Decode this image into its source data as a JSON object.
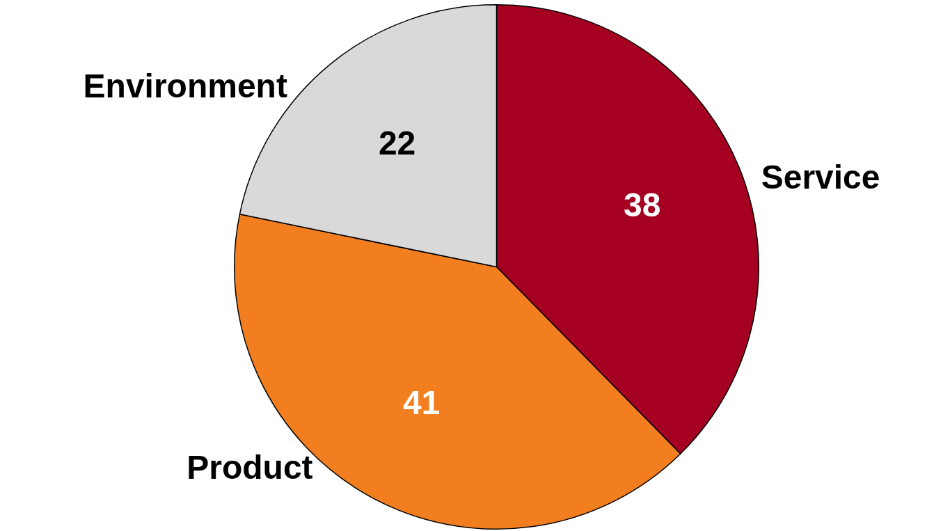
{
  "chart_data": {
    "type": "pie",
    "categories": [
      "Service",
      "Product",
      "Environment"
    ],
    "values": [
      38,
      41,
      22
    ],
    "colors": [
      "#a50021",
      "#f37e20",
      "#d9d9d9"
    ],
    "data_labels": true,
    "legend": false
  }
}
